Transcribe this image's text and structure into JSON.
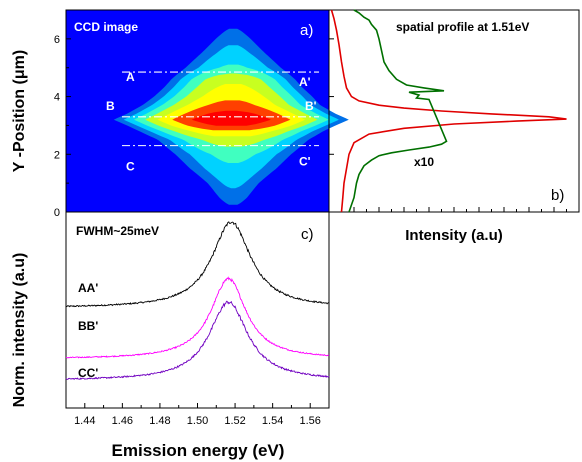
{
  "chart_data": [
    {
      "panel": "a",
      "type": "heatmap",
      "title": "CCD image",
      "panel_tag": "a)",
      "xlim": [
        1.43,
        1.57
      ],
      "ylabel": "Y -Position (μm)",
      "ylim": [
        0,
        7
      ],
      "y_ticks": [
        "0",
        "2",
        "4",
        "6"
      ],
      "colormap": [
        "#0000ff",
        "#0070e8",
        "#00d2ff",
        "#40ffc0",
        "#c8ff20",
        "#ffff00",
        "#ff4000",
        "#ff0000"
      ],
      "profile": {
        "y": [
          0.2,
          0.5,
          1.0,
          1.5,
          2.0,
          2.5,
          2.8,
          3.0,
          3.2,
          3.4,
          3.7,
          4.0,
          4.3,
          4.6,
          5.0,
          5.5,
          6.0,
          6.4
        ],
        "halfwidth_eV": [
          0.008,
          0.012,
          0.018,
          0.028,
          0.036,
          0.044,
          0.052,
          0.058,
          0.065,
          0.058,
          0.05,
          0.045,
          0.04,
          0.036,
          0.03,
          0.022,
          0.014,
          0.008
        ],
        "peak_level": [
          0.12,
          0.2,
          0.28,
          0.35,
          0.42,
          0.58,
          0.75,
          0.9,
          0.98,
          0.92,
          0.8,
          0.72,
          0.66,
          0.6,
          0.4,
          0.3,
          0.22,
          0.12
        ],
        "center_eV": [
          1.519,
          1.519,
          1.519,
          1.519,
          1.519,
          1.519,
          1.518,
          1.518,
          1.518,
          1.518,
          1.518,
          1.519,
          1.519,
          1.519,
          1.519,
          1.519,
          1.519,
          1.519
        ]
      },
      "cuts": [
        {
          "name": "A",
          "end": "A'",
          "y": 4.85
        },
        {
          "name": "B",
          "end": "B'",
          "y": 3.3
        },
        {
          "name": "C",
          "end": "C'",
          "y": 2.3
        }
      ]
    },
    {
      "panel": "b",
      "type": "line",
      "title": "spatial profile at 1.51eV",
      "panel_tag": "b)",
      "xlabel": "Intensity (a.u)",
      "ylim": [
        0,
        7
      ],
      "xlim": [
        0,
        1
      ],
      "annotation": "x10",
      "series": [
        {
          "color": "#e00000",
          "y": [
            0.0,
            0.5,
            1.0,
            1.5,
            2.0,
            2.4,
            2.7,
            2.9,
            3.05,
            3.15,
            3.22,
            3.3,
            3.4,
            3.5,
            3.6,
            3.7,
            3.85,
            4.0,
            4.3,
            4.7,
            5.2,
            5.8,
            6.3,
            6.7,
            7.0
          ],
          "x": [
            0.05,
            0.055,
            0.06,
            0.07,
            0.08,
            0.1,
            0.16,
            0.3,
            0.5,
            0.75,
            0.95,
            0.88,
            0.65,
            0.45,
            0.3,
            0.2,
            0.12,
            0.09,
            0.07,
            0.06,
            0.05,
            0.04,
            0.03,
            0.02,
            0.01
          ]
        },
        {
          "color": "#007000",
          "y": [
            0.0,
            0.5,
            1.0,
            1.3,
            1.6,
            1.8,
            1.95,
            2.05,
            2.15,
            2.25,
            2.35,
            2.45,
            3.9,
            3.95,
            4.05,
            4.15,
            4.2,
            4.3,
            4.4,
            4.6,
            4.9,
            5.2,
            5.6,
            6.0,
            6.3,
            6.5,
            6.65,
            6.75,
            6.9,
            7.0
          ],
          "x": [
            0.08,
            0.1,
            0.11,
            0.12,
            0.14,
            0.17,
            0.2,
            0.25,
            0.32,
            0.4,
            0.45,
            0.47,
            0.4,
            0.35,
            0.36,
            0.32,
            0.46,
            0.38,
            0.31,
            0.27,
            0.24,
            0.22,
            0.21,
            0.2,
            0.19,
            0.17,
            0.16,
            0.14,
            0.12,
            0.1
          ]
        }
      ]
    },
    {
      "panel": "c",
      "type": "line",
      "title": "FWHM~25meV",
      "panel_tag": "c)",
      "xlabel": "Emission energy (eV)",
      "ylabel": "Norm. intensity (a.u)",
      "xlim": [
        1.43,
        1.57
      ],
      "x_ticks": [
        "1.44",
        "1.46",
        "1.48",
        "1.50",
        "1.52",
        "1.54",
        "1.56"
      ],
      "ylim": [
        0,
        10
      ],
      "series": [
        {
          "name": "AA'",
          "color": "#000000",
          "offset": 5.1,
          "amplitude": 4.4,
          "center": 1.518,
          "hwhm": 0.0125,
          "noise": 0.11
        },
        {
          "name": "BB'",
          "color": "#ff00ff",
          "offset": 2.5,
          "amplitude": 4.1,
          "center": 1.5165,
          "hwhm": 0.0115,
          "noise": 0.09
        },
        {
          "name": "CC'",
          "color": "#7000c0",
          "offset": 1.4,
          "amplitude": 4.0,
          "center": 1.5165,
          "hwhm": 0.0125,
          "noise": 0.11
        }
      ]
    }
  ]
}
